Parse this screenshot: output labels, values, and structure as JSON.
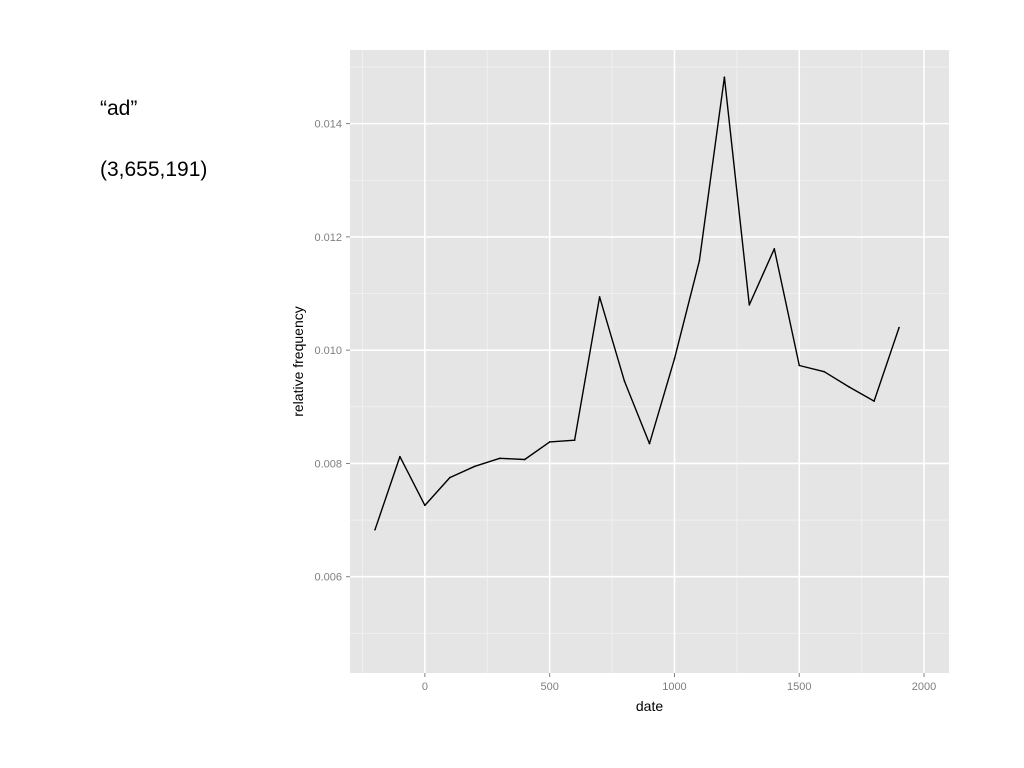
{
  "caption": {
    "word": "“ad”",
    "count": "(3,655,191)"
  },
  "chart_data": {
    "type": "line",
    "title": "",
    "xlabel": "date",
    "ylabel": "relative frequency",
    "xlim": [
      -300,
      2100
    ],
    "ylim": [
      0.0043,
      0.0153
    ],
    "x_ticks": [
      0,
      500,
      1000,
      1500,
      2000
    ],
    "x_tick_labels": [
      "0",
      "500",
      "1000",
      "1500",
      "2000"
    ],
    "y_ticks": [
      0.006,
      0.008,
      0.01,
      0.012,
      0.014
    ],
    "y_tick_labels": [
      "0.006",
      "0.008",
      "0.010",
      "0.012",
      "0.014"
    ],
    "grid": true,
    "legend": "none",
    "colors": {
      "panel": "#e5e5e5",
      "grid": "#ffffff",
      "line": "#000000"
    },
    "series": [
      {
        "x": [
          -200,
          -100,
          0,
          100,
          200,
          300,
          400,
          500,
          600,
          700,
          800,
          900,
          1000,
          1100,
          1200,
          1300,
          1400,
          1500,
          1600,
          1700,
          1800,
          1900
        ],
        "y": [
          0.00683,
          0.00812,
          0.00726,
          0.00775,
          0.00795,
          0.00809,
          0.00807,
          0.00838,
          0.00841,
          0.01094,
          0.00945,
          0.00835,
          0.00985,
          0.01158,
          0.01482,
          0.0108,
          0.01179,
          0.00973,
          0.00962,
          0.00935,
          0.0091,
          0.0104
        ]
      }
    ]
  }
}
